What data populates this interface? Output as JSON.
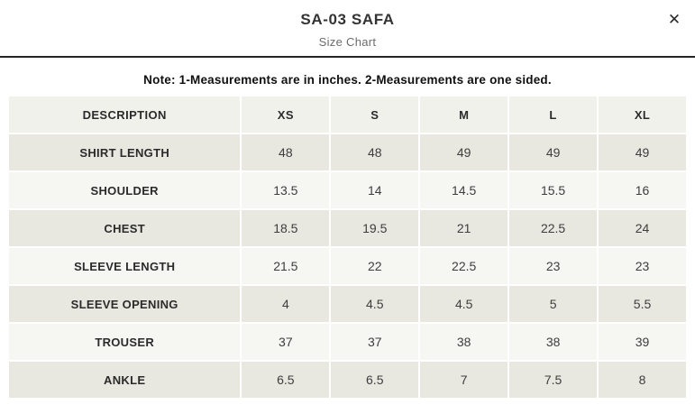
{
  "modal": {
    "title": "SA-03 SAFA",
    "subtitle": "Size Chart",
    "close_icon": "✕"
  },
  "note": "Note: 1-Measurements are in inches. 2-Measurements are one sided.",
  "table": {
    "columns": [
      "DESCRIPTION",
      "XS",
      "S",
      "M",
      "L",
      "XL"
    ],
    "rows": [
      {
        "label": "SHIRT LENGTH",
        "values": [
          "48",
          "48",
          "49",
          "49",
          "49"
        ]
      },
      {
        "label": "SHOULDER",
        "values": [
          "13.5",
          "14",
          "14.5",
          "15.5",
          "16"
        ]
      },
      {
        "label": "CHEST",
        "values": [
          "18.5",
          "19.5",
          "21",
          "22.5",
          "24"
        ]
      },
      {
        "label": "SLEEVE LENGTH",
        "values": [
          "21.5",
          "22",
          "22.5",
          "23",
          "23"
        ]
      },
      {
        "label": "SLEEVE OPENING",
        "values": [
          "4",
          "4.5",
          "4.5",
          "5",
          "5.5"
        ]
      },
      {
        "label": "TROUSER",
        "values": [
          "37",
          "37",
          "38",
          "38",
          "39"
        ]
      },
      {
        "label": "ANKLE",
        "values": [
          "6.5",
          "6.5",
          "7",
          "7.5",
          "8"
        ]
      }
    ]
  },
  "colors": {
    "divider": "#242424",
    "header_bg": "#f1f1ec",
    "row_stripe_dark": "#e8e8e1",
    "row_stripe_light": "#f6f6f2"
  }
}
